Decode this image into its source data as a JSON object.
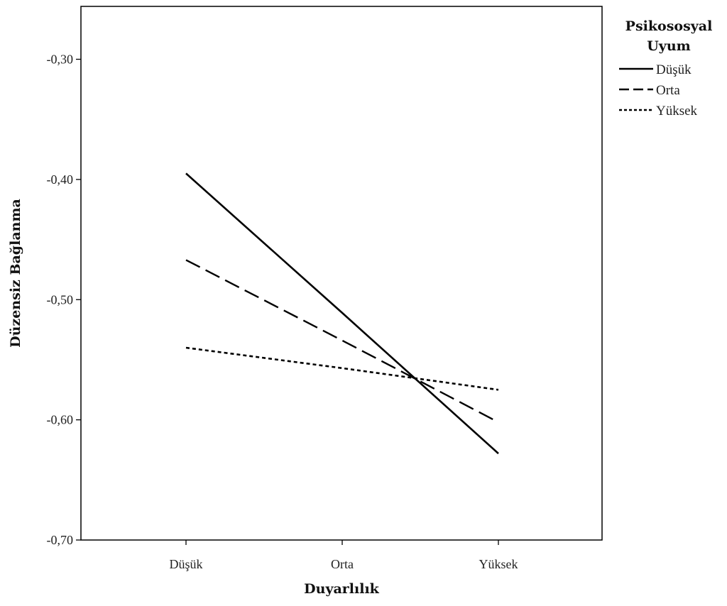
{
  "chart_data": {
    "type": "line",
    "xlabel": "Duyarlılık",
    "ylabel": "Düzensiz Bağlanma",
    "categories": [
      "Düşük",
      "Orta",
      "Yüksek"
    ],
    "ylim": [
      -0.7,
      -0.256
    ],
    "yticks": [
      "-0,30",
      "-0,40",
      "-0,50",
      "-0,60",
      "-0,70"
    ],
    "ytick_values": [
      -0.3,
      -0.4,
      -0.5,
      -0.6,
      -0.7
    ],
    "legend": {
      "title_lines": [
        "Psikososyal",
        "Uyum"
      ],
      "placement": "right"
    },
    "series": [
      {
        "name": "Düşük",
        "style": "solid",
        "values": [
          -0.395,
          -0.511,
          -0.628
        ]
      },
      {
        "name": "Orta",
        "style": "dashed",
        "values": [
          -0.467,
          -0.534,
          -0.602
        ]
      },
      {
        "name": "Yüksek",
        "style": "dotted",
        "values": [
          -0.54,
          -0.557,
          -0.575
        ]
      }
    ],
    "grid": false,
    "colors": {
      "line": "#000000",
      "axis": "#000000"
    }
  }
}
